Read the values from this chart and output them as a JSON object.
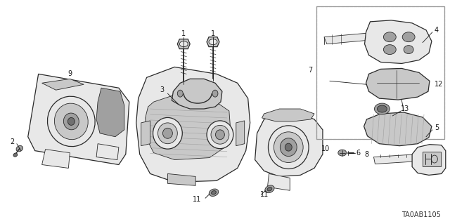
{
  "bg": "#ffffff",
  "fg": "#2a2a2a",
  "gray1": "#c8c8c8",
  "gray2": "#e8e8e8",
  "gray3": "#a0a0a0",
  "gray4": "#707070",
  "gray5": "#505050",
  "box_dash_color": "#999999",
  "label_color": "#1a1a1a",
  "code_color": "#333333",
  "fig_w": 6.4,
  "fig_h": 3.19,
  "dpi": 100,
  "diagram_code": "TA0AB1105",
  "lw_main": 0.9,
  "lw_thin": 0.6,
  "label_fs": 7.0,
  "code_fs": 7.0
}
